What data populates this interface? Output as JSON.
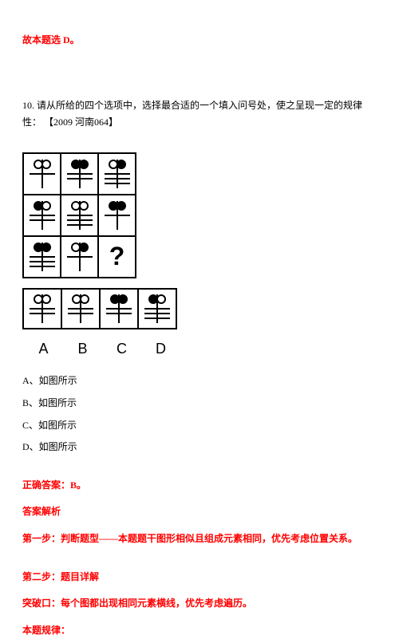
{
  "topline": "故本题选 D。",
  "question": {
    "prefix": "10.",
    "text": "请从所给的四个选项中，选择最合适的一个填入问号处，使之呈现一定的规律性：",
    "tag": "【2009 河南064】"
  },
  "grid": [
    [
      {
        "left": "open",
        "right": "open",
        "lines": 1
      },
      {
        "left": "filled",
        "right": "filled",
        "lines": 2
      },
      {
        "left": "open",
        "right": "filled",
        "lines": 3
      }
    ],
    [
      {
        "left": "filled",
        "right": "open",
        "lines": 2
      },
      {
        "left": "open",
        "right": "open",
        "lines": 3
      },
      {
        "left": "filled",
        "right": "filled",
        "lines": 1
      }
    ],
    [
      {
        "left": "filled",
        "right": "filled",
        "lines": 3
      },
      {
        "left": "open",
        "right": "filled",
        "lines": 1
      },
      {
        "qmark": true
      }
    ]
  ],
  "options": [
    {
      "letter": "A",
      "left": "open",
      "right": "open",
      "lines": 2
    },
    {
      "letter": "B",
      "left": "open",
      "right": "open",
      "lines": 2
    },
    {
      "letter": "C",
      "left": "filled",
      "right": "filled",
      "lines": 2
    },
    {
      "letter": "D",
      "left": "filled",
      "right": "open",
      "lines": 3
    }
  ],
  "answerList": {
    "A": "如图所示",
    "B": "如图所示",
    "C": "如图所示",
    "D": "如图所示"
  },
  "correct": "正确答案：B。",
  "analysisTitle": "答案解析",
  "step1": "第一步：判断题型——本题题干图形相似且组成元素相同，优先考虑位置关系。",
  "step2title": "第二步：题目详解",
  "step2body": "突破口：每个图都出现相同元素横线，优先考虑遍历。",
  "rule": "本题规律：",
  "colors": {
    "red": "#ff0000"
  }
}
